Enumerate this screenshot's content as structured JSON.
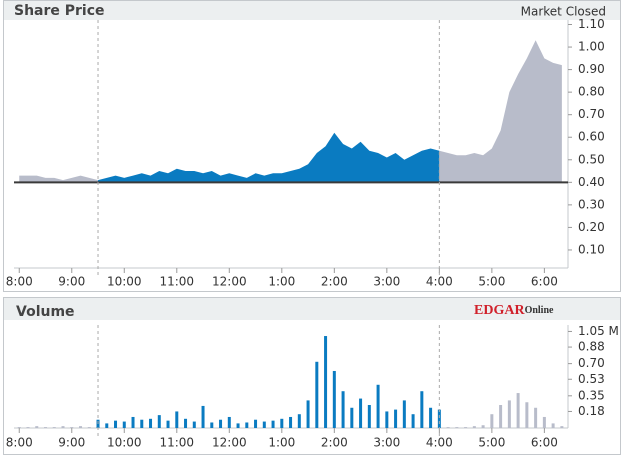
{
  "chart_data": [
    {
      "type": "area",
      "title": "Share Price",
      "annotation": "Market Closed",
      "x": [
        480,
        490,
        500,
        510,
        520,
        530,
        540,
        550,
        560,
        570,
        580,
        590,
        600,
        610,
        620,
        630,
        640,
        650,
        660,
        670,
        680,
        690,
        700,
        710,
        720,
        730,
        740,
        750,
        760,
        770,
        780,
        790,
        800,
        810,
        820,
        830,
        840,
        850,
        860,
        870,
        880,
        890,
        900,
        910,
        920,
        930,
        940,
        950,
        960,
        970,
        980,
        990,
        1000,
        1010,
        1020,
        1030,
        1040,
        1050,
        1060,
        1070,
        1080,
        1090,
        1100
      ],
      "values": [
        0.43,
        0.43,
        0.43,
        0.42,
        0.42,
        0.41,
        0.42,
        0.43,
        0.42,
        0.41,
        0.42,
        0.43,
        0.42,
        0.43,
        0.44,
        0.43,
        0.45,
        0.44,
        0.46,
        0.45,
        0.45,
        0.44,
        0.45,
        0.43,
        0.44,
        0.43,
        0.42,
        0.44,
        0.43,
        0.44,
        0.44,
        0.45,
        0.46,
        0.48,
        0.53,
        0.56,
        0.62,
        0.57,
        0.55,
        0.58,
        0.54,
        0.53,
        0.51,
        0.53,
        0.5,
        0.52,
        0.54,
        0.55,
        0.54,
        0.53,
        0.52,
        0.52,
        0.53,
        0.52,
        0.55,
        0.63,
        0.8,
        0.88,
        0.95,
        1.03,
        0.95,
        0.93,
        0.92
      ],
      "color": "#0a7bc1",
      "extended_color": "#b8bcca",
      "previous_close": 0.4,
      "market_hours": [
        570,
        960
      ],
      "xlim": [
        474,
        1107
      ],
      "xticks": [
        {
          "value": 480,
          "label": "8:00"
        },
        {
          "value": 540,
          "label": "9:00"
        },
        {
          "value": 600,
          "label": "10:00"
        },
        {
          "value": 660,
          "label": "11:00"
        },
        {
          "value": 720,
          "label": "12:00"
        },
        {
          "value": 780,
          "label": "1:00"
        },
        {
          "value": 840,
          "label": "2:00"
        },
        {
          "value": 900,
          "label": "3:00"
        },
        {
          "value": 960,
          "label": "4:00"
        },
        {
          "value": 1020,
          "label": "5:00"
        },
        {
          "value": 1080,
          "label": "6:00"
        }
      ],
      "ylim": [
        0.02,
        1.12
      ],
      "yticks": [
        {
          "value": 0.1,
          "label": "0.10"
        },
        {
          "value": 0.2,
          "label": "0.20"
        },
        {
          "value": 0.3,
          "label": "0.30"
        },
        {
          "value": 0.4,
          "label": "0.40"
        },
        {
          "value": 0.5,
          "label": "0.50"
        },
        {
          "value": 0.6,
          "label": "0.60"
        },
        {
          "value": 0.7,
          "label": "0.70"
        },
        {
          "value": 0.8,
          "label": "0.80"
        },
        {
          "value": 0.9,
          "label": "0.90"
        },
        {
          "value": 1.0,
          "label": "1.00"
        },
        {
          "value": 1.1,
          "label": "1.10"
        }
      ]
    },
    {
      "type": "bar",
      "title": "Volume",
      "logo": "EDGAR",
      "logo_suffix": "Online",
      "x": [
        480,
        490,
        500,
        510,
        520,
        530,
        540,
        550,
        560,
        570,
        580,
        590,
        600,
        610,
        620,
        630,
        640,
        650,
        660,
        670,
        680,
        690,
        700,
        710,
        720,
        730,
        740,
        750,
        760,
        770,
        780,
        790,
        800,
        810,
        820,
        830,
        840,
        850,
        860,
        870,
        880,
        890,
        900,
        910,
        920,
        930,
        940,
        950,
        960,
        970,
        980,
        990,
        1000,
        1010,
        1020,
        1030,
        1040,
        1050,
        1060,
        1070,
        1080,
        1090,
        1100
      ],
      "values": [
        0.01,
        0.01,
        0.02,
        0.01,
        0.01,
        0.02,
        0.01,
        0.02,
        0.01,
        0.09,
        0.05,
        0.08,
        0.07,
        0.12,
        0.09,
        0.1,
        0.14,
        0.08,
        0.18,
        0.1,
        0.07,
        0.24,
        0.06,
        0.09,
        0.12,
        0.05,
        0.06,
        0.09,
        0.07,
        0.08,
        0.1,
        0.12,
        0.15,
        0.3,
        0.72,
        1.0,
        0.62,
        0.4,
        0.22,
        0.32,
        0.25,
        0.47,
        0.18,
        0.2,
        0.3,
        0.15,
        0.4,
        0.22,
        0.2,
        0.01,
        0.01,
        0.01,
        0.02,
        0.03,
        0.15,
        0.25,
        0.3,
        0.38,
        0.28,
        0.22,
        0.12,
        0.05,
        0.02
      ],
      "color": "#0a7bc1",
      "extended_color": "#b8bcca",
      "market_hours": [
        570,
        960
      ],
      "xlim": [
        474,
        1107
      ],
      "xticks": [
        {
          "value": 480,
          "label": "8:00"
        },
        {
          "value": 540,
          "label": "9:00"
        },
        {
          "value": 600,
          "label": "10:00"
        },
        {
          "value": 660,
          "label": "11:00"
        },
        {
          "value": 720,
          "label": "12:00"
        },
        {
          "value": 780,
          "label": "1:00"
        },
        {
          "value": 840,
          "label": "2:00"
        },
        {
          "value": 900,
          "label": "3:00"
        },
        {
          "value": 960,
          "label": "4:00"
        },
        {
          "value": 1020,
          "label": "5:00"
        },
        {
          "value": 1080,
          "label": "6:00"
        }
      ],
      "ylim": [
        0,
        1.12
      ],
      "yticks": [
        {
          "value": 0.18,
          "label": "0.18"
        },
        {
          "value": 0.35,
          "label": "0.35"
        },
        {
          "value": 0.53,
          "label": "0.53"
        },
        {
          "value": 0.7,
          "label": "0.70"
        },
        {
          "value": 0.88,
          "label": "0.88"
        },
        {
          "value": 1.05,
          "label": "1.05 M"
        }
      ]
    }
  ]
}
